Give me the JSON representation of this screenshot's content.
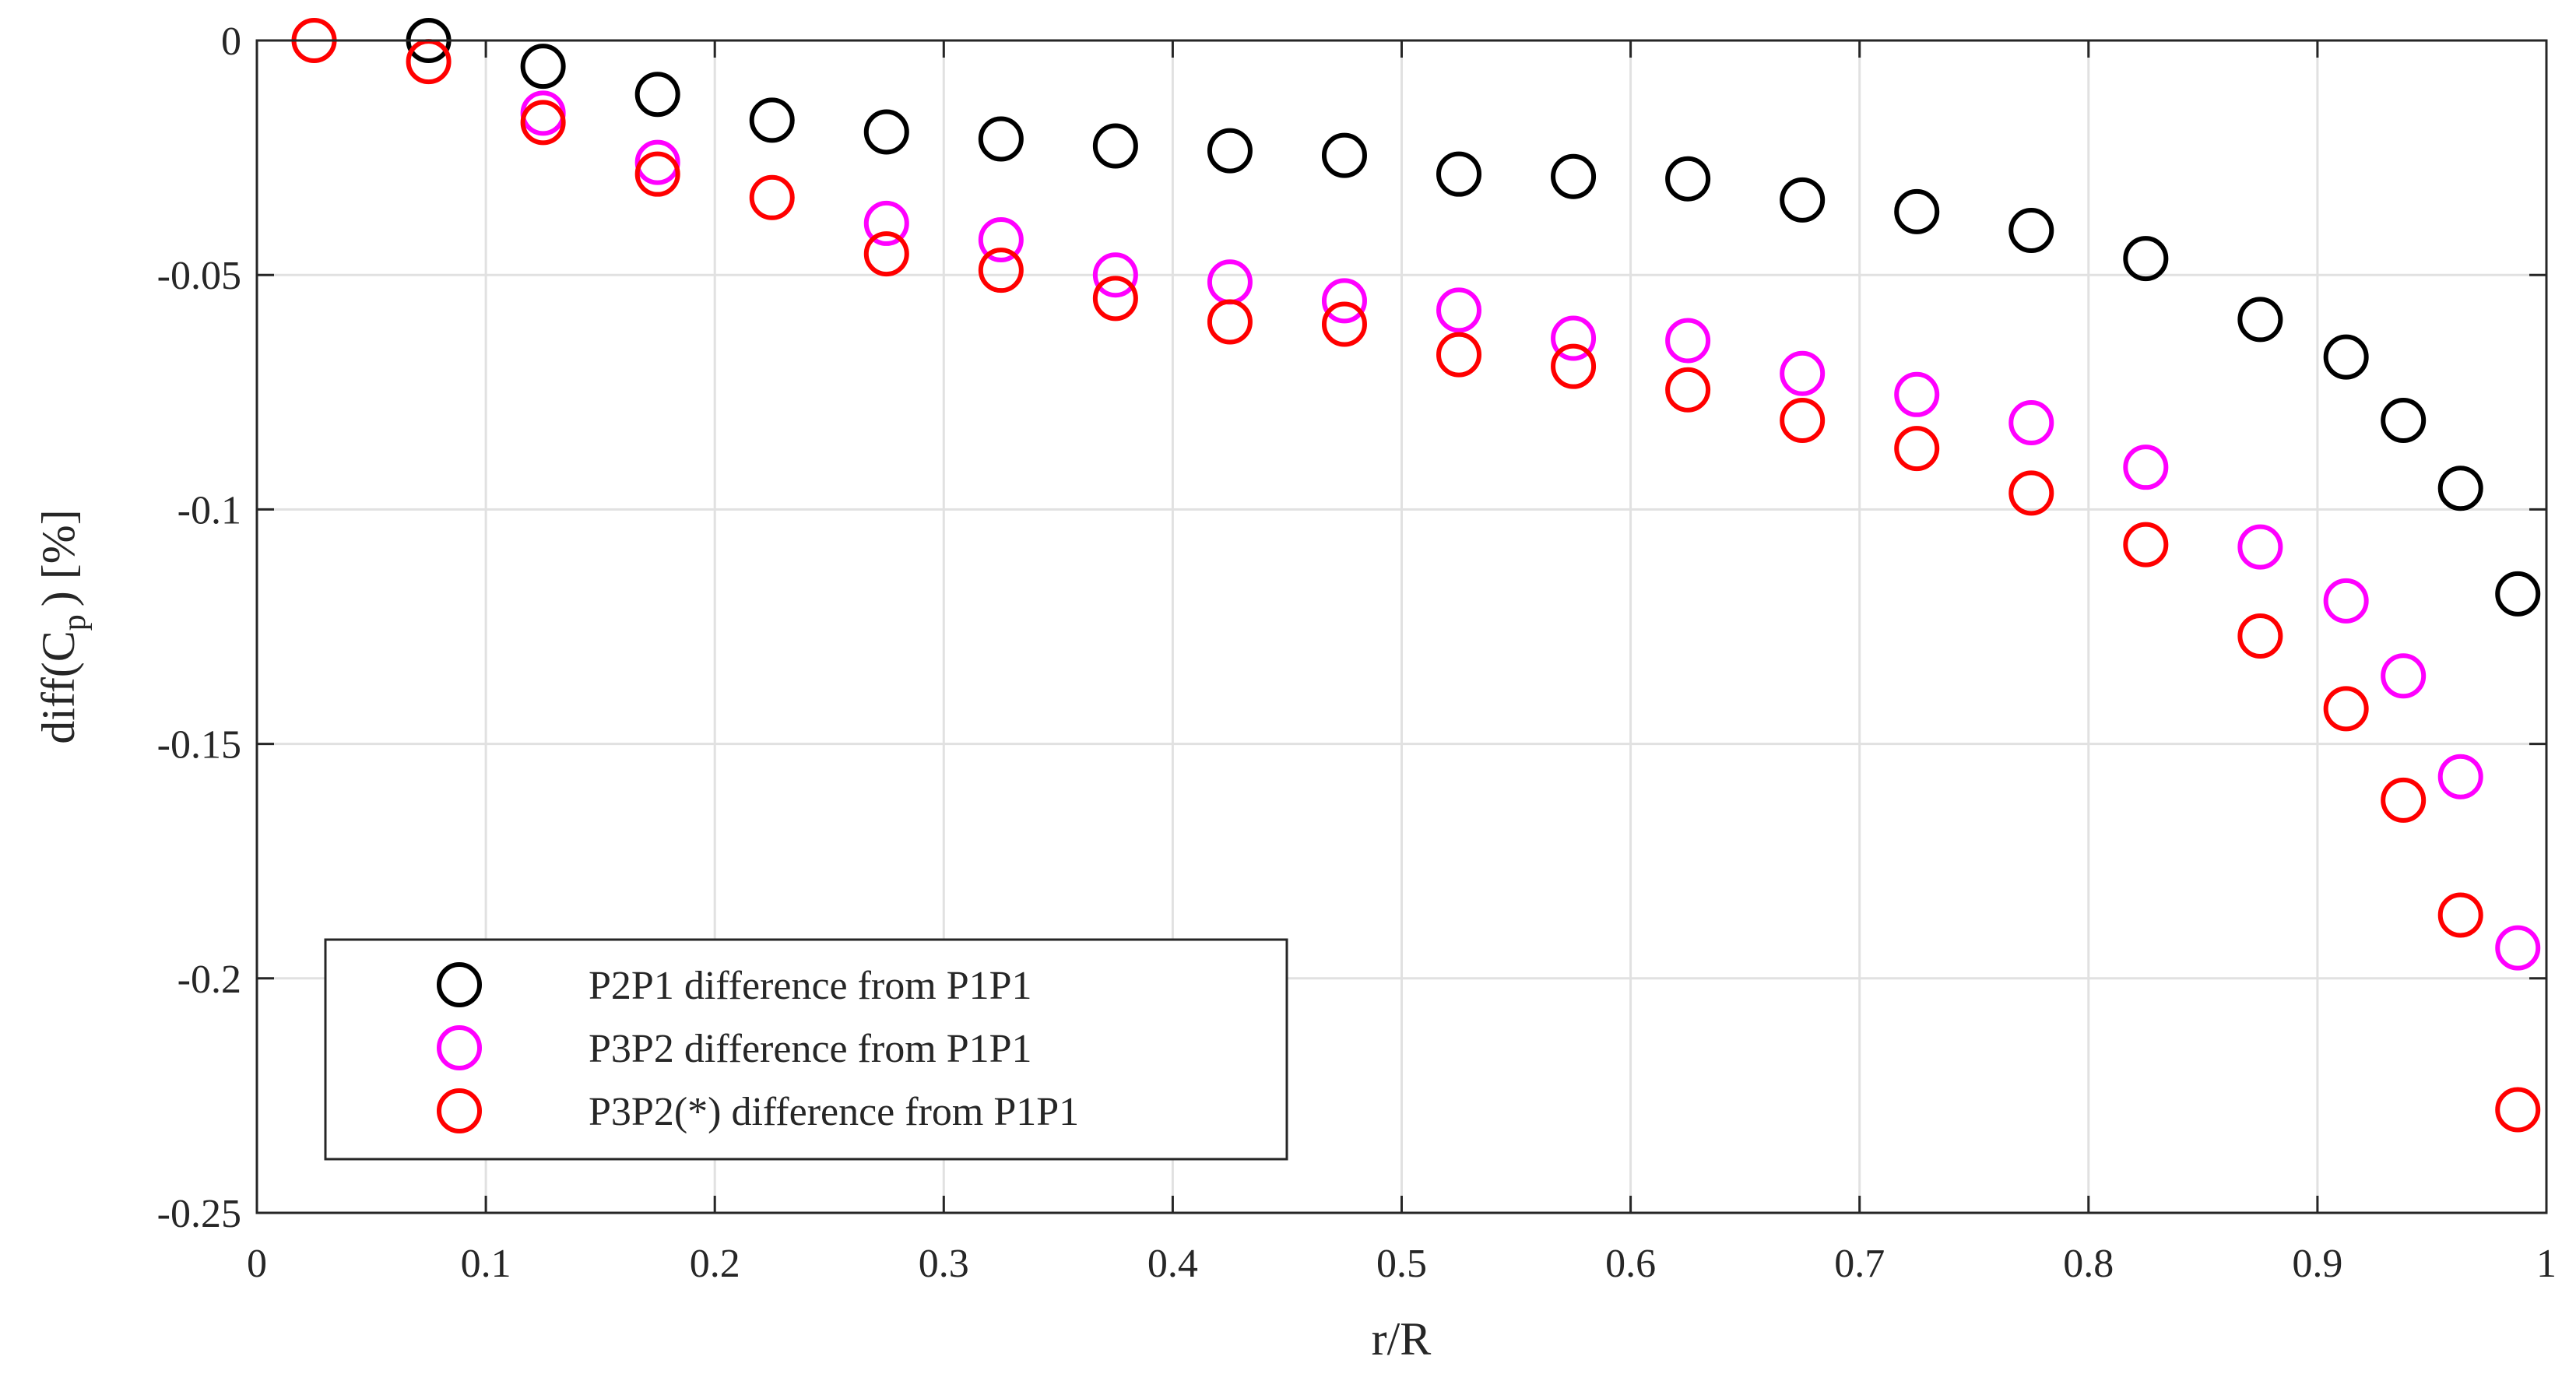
{
  "chart_data": {
    "type": "scatter",
    "title": "",
    "xlabel": "r/R",
    "ylabel": "diff(C_p) [%]",
    "ylabel_main": "diff(C",
    "ylabel_sub": "p",
    "ylabel_tail": ") [%]",
    "xlim": [
      0,
      1
    ],
    "ylim": [
      -0.25,
      0
    ],
    "grid": true,
    "legend_position": "bottom-left",
    "x_ticks": [
      {
        "value": 0,
        "label": "0"
      },
      {
        "value": 0.1,
        "label": "0.1"
      },
      {
        "value": 0.2,
        "label": "0.2"
      },
      {
        "value": 0.3,
        "label": "0.3"
      },
      {
        "value": 0.4,
        "label": "0.4"
      },
      {
        "value": 0.5,
        "label": "0.5"
      },
      {
        "value": 0.6,
        "label": "0.6"
      },
      {
        "value": 0.7,
        "label": "0.7"
      },
      {
        "value": 0.8,
        "label": "0.8"
      },
      {
        "value": 0.9,
        "label": "0.9"
      },
      {
        "value": 1,
        "label": "1"
      }
    ],
    "y_ticks": [
      {
        "value": 0,
        "label": "0"
      },
      {
        "value": -0.05,
        "label": "-0.05"
      },
      {
        "value": -0.1,
        "label": "-0.1"
      },
      {
        "value": -0.15,
        "label": "-0.15"
      },
      {
        "value": -0.2,
        "label": "-0.2"
      },
      {
        "value": -0.25,
        "label": "-0.25"
      }
    ],
    "series": [
      {
        "name": "P2P1 difference from P1P1",
        "color": "#000000",
        "marker": "circle-open",
        "x": [
          0.075,
          0.125,
          0.175,
          0.225,
          0.275,
          0.325,
          0.375,
          0.425,
          0.475,
          0.525,
          0.575,
          0.625,
          0.675,
          0.725,
          0.775,
          0.825,
          0.875,
          0.9125,
          0.9375,
          0.9625,
          0.9875
        ],
        "y": [
          0,
          -0.0055,
          -0.0115,
          -0.017,
          -0.0195,
          -0.021,
          -0.0225,
          -0.0235,
          -0.0245,
          -0.0285,
          -0.029,
          -0.0295,
          -0.034,
          -0.0365,
          -0.0405,
          -0.0465,
          -0.0595,
          -0.0675,
          -0.081,
          -0.0955,
          -0.118
        ]
      },
      {
        "name": "P3P2 difference from P1P1",
        "color": "#ff00ff",
        "marker": "circle-open",
        "x": [
          0.125,
          0.175,
          0.275,
          0.325,
          0.375,
          0.425,
          0.475,
          0.525,
          0.575,
          0.625,
          0.675,
          0.725,
          0.775,
          0.825,
          0.875,
          0.9125,
          0.9375,
          0.9625,
          0.9875
        ],
        "y": [
          -0.0155,
          -0.026,
          -0.039,
          -0.0425,
          -0.05,
          -0.0515,
          -0.0555,
          -0.0575,
          -0.0635,
          -0.064,
          -0.071,
          -0.0755,
          -0.0815,
          -0.091,
          -0.108,
          -0.1195,
          -0.1355,
          -0.157,
          -0.1935
        ]
      },
      {
        "name": "P3P2(*) difference from P1P1",
        "color": "#ff0000",
        "marker": "circle-open",
        "x": [
          0.025,
          0.075,
          0.125,
          0.175,
          0.225,
          0.275,
          0.325,
          0.375,
          0.425,
          0.475,
          0.525,
          0.575,
          0.625,
          0.675,
          0.725,
          0.775,
          0.825,
          0.875,
          0.9125,
          0.9375,
          0.9625,
          0.9875
        ],
        "y": [
          0,
          -0.0045,
          -0.0175,
          -0.0285,
          -0.0335,
          -0.0455,
          -0.049,
          -0.055,
          -0.06,
          -0.0605,
          -0.067,
          -0.0695,
          -0.0745,
          -0.081,
          -0.087,
          -0.0965,
          -0.1075,
          -0.127,
          -0.1425,
          -0.162,
          -0.1865,
          -0.228
        ]
      }
    ]
  }
}
